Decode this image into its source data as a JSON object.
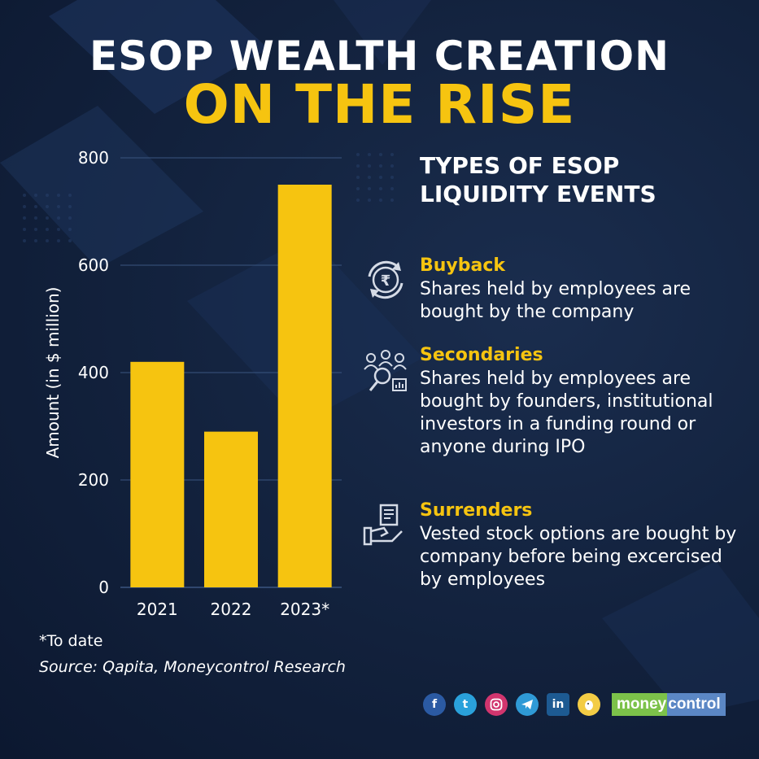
{
  "title": {
    "line1": "ESOP WEALTH CREATION",
    "line2": "ON THE RISE"
  },
  "chart_data": {
    "type": "bar",
    "categories": [
      "2021",
      "2022",
      "2023*"
    ],
    "values": [
      420,
      290,
      750
    ],
    "ylabel": "Amount (in $ million)",
    "xlabel": "",
    "ylim": [
      0,
      800
    ],
    "yticks": [
      0,
      200,
      400,
      600,
      800
    ],
    "grid": true,
    "bar_color": "#f6c410"
  },
  "types": {
    "heading": "TYPES OF ESOP LIQUIDITY EVENTS",
    "items": [
      {
        "title": "Buyback",
        "description": "Shares held by employees are bought by the company",
        "icon": "rupee-cycle-icon"
      },
      {
        "title": "Secondaries",
        "description": "Shares held by employees are bought by founders, institutional investors in a funding round or anyone during IPO",
        "icon": "people-search-icon"
      },
      {
        "title": "Surrenders",
        "description": "Vested stock options are bought by company before being excercised by employees",
        "icon": "hand-document-icon"
      }
    ]
  },
  "footnote": "*To date",
  "source": "Source: Qapita, Moneycontrol Research",
  "branding": {
    "name_part1": "money",
    "name_part2": "control",
    "social_icons": [
      "facebook-icon",
      "twitter-icon",
      "instagram-icon",
      "telegram-icon",
      "linkedin-icon",
      "koo-icon"
    ]
  },
  "colors": {
    "accent": "#f6c410",
    "background": "#12213c"
  }
}
